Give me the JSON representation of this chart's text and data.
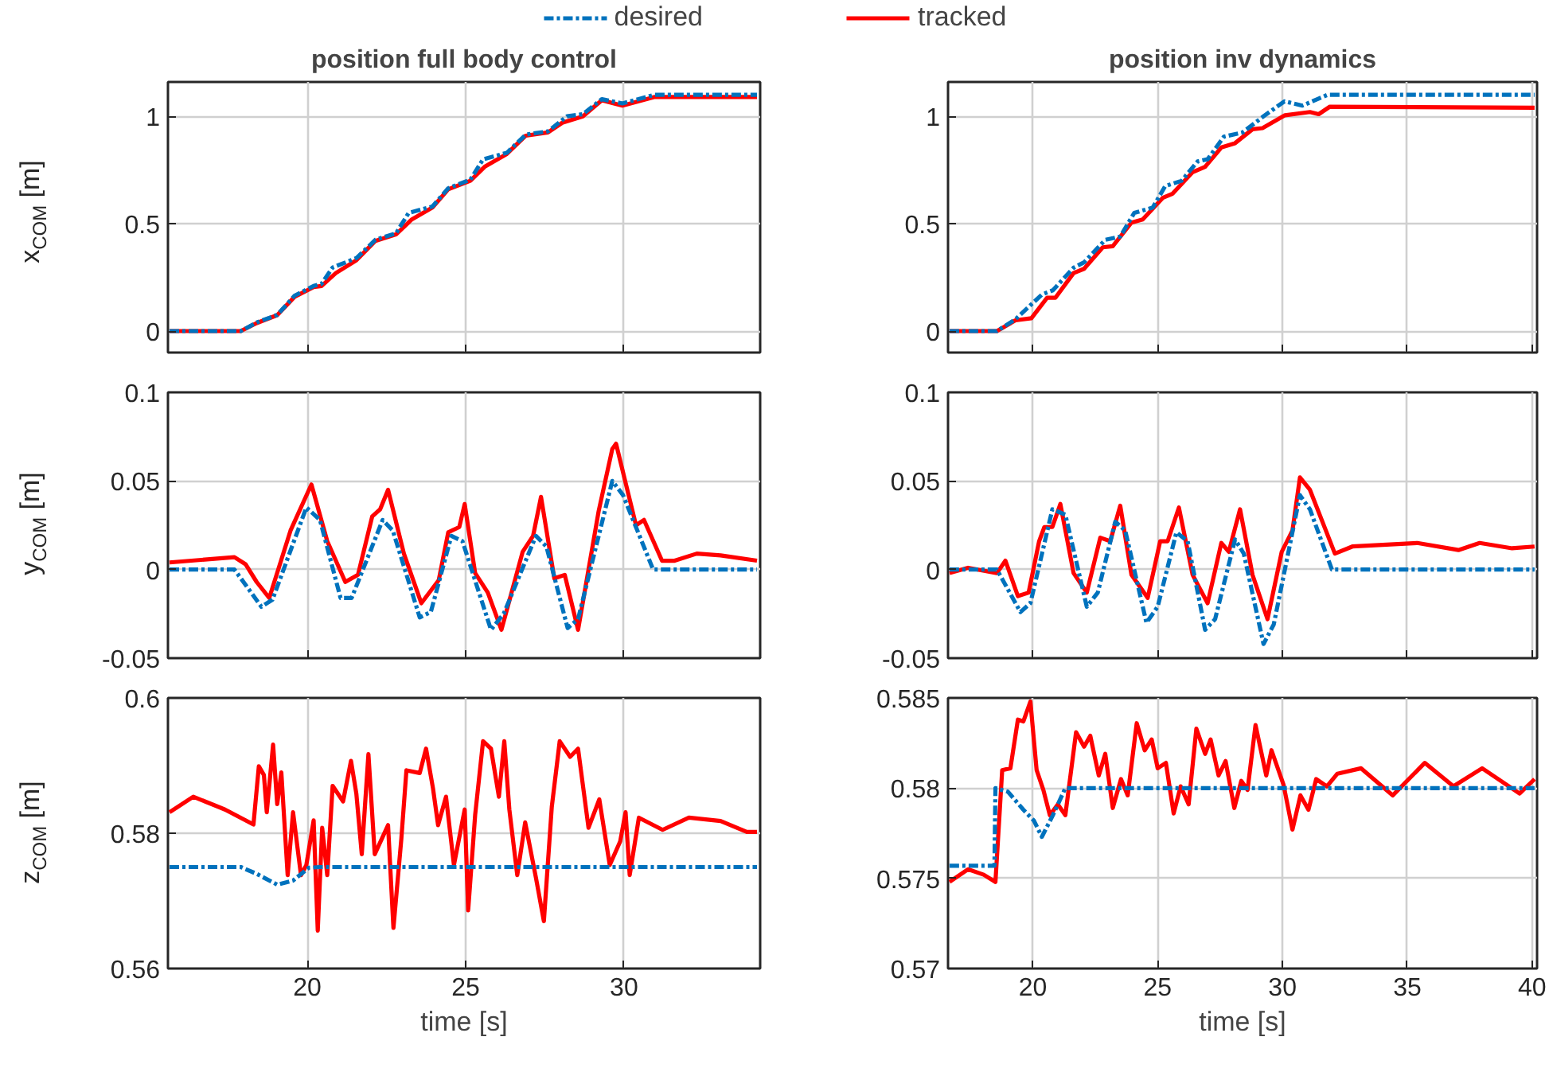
{
  "chart_data": [
    {
      "type": "line",
      "title": "position full body control",
      "ylabel": "x$_{COM}$ [m]",
      "xlim": [
        15.6,
        34.3
      ],
      "xticks": [
        20,
        25,
        30
      ],
      "ylim": [
        -0.1,
        1.16
      ],
      "yticks": [
        0,
        0.5,
        1
      ],
      "grid": true,
      "tick_labels": "y",
      "legend": "top",
      "line_style": "solid",
      "series": [
        {
          "name": "desired",
          "color": "#0072bd",
          "line_style": "dashdot",
          "x": [
            15.65,
            17.9,
            18.4,
            19.05,
            19.6,
            20.2,
            20.45,
            20.8,
            21.55,
            22.15,
            22.8,
            23.2,
            23.95,
            24.45,
            25.15,
            25.55,
            26.3,
            26.9,
            27.6,
            28.2,
            28.7,
            29.3,
            29.95,
            30.95,
            34.2
          ],
          "values": [
            0,
            0,
            0.04,
            0.075,
            0.165,
            0.21,
            0.22,
            0.296,
            0.34,
            0.425,
            0.455,
            0.55,
            0.58,
            0.665,
            0.705,
            0.8,
            0.83,
            0.915,
            0.93,
            1.0,
            1.01,
            1.08,
            1.06,
            1.1,
            1.1
          ]
        },
        {
          "name": "tracked",
          "color": "#ff0000",
          "x": [
            15.65,
            17.9,
            18.4,
            19.05,
            19.6,
            20.2,
            20.45,
            20.9,
            21.55,
            22.15,
            22.8,
            23.3,
            23.95,
            24.45,
            25.15,
            25.6,
            26.3,
            26.9,
            27.6,
            28.05,
            28.7,
            29.3,
            29.95,
            30.95,
            34.2
          ],
          "values": [
            0,
            0,
            0.037,
            0.074,
            0.16,
            0.205,
            0.21,
            0.27,
            0.33,
            0.42,
            0.45,
            0.52,
            0.575,
            0.66,
            0.7,
            0.765,
            0.825,
            0.91,
            0.925,
            0.97,
            1.0,
            1.075,
            1.05,
            1.09,
            1.09
          ]
        }
      ]
    },
    {
      "type": "line",
      "title": "position inv dynamics",
      "xlim": [
        16.6,
        40.2
      ],
      "xticks": [
        20,
        25,
        30,
        35,
        40
      ],
      "ylim": [
        -0.1,
        1.16
      ],
      "yticks": [
        0,
        0.5,
        1
      ],
      "grid": true,
      "tick_labels": "y",
      "series": [
        {
          "color": "#0072bd",
          "line_style": "dashdot",
          "x": [
            16.66,
            18.56,
            19.3,
            20.36,
            20.8,
            21.63,
            22.05,
            22.9,
            23.5,
            24.06,
            24.8,
            25.3,
            25.96,
            26.6,
            27.0,
            27.65,
            28.4,
            29.24,
            30.08,
            30.8,
            31.8,
            40.1
          ],
          "values": [
            0,
            0,
            0.055,
            0.17,
            0.19,
            0.295,
            0.32,
            0.425,
            0.44,
            0.55,
            0.575,
            0.675,
            0.7,
            0.79,
            0.8,
            0.905,
            0.925,
            1.0,
            1.07,
            1.05,
            1.1,
            1.1
          ]
        },
        {
          "color": "#ff0000",
          "x": [
            16.66,
            18.56,
            19.3,
            19.94,
            20.57,
            20.9,
            21.63,
            22.05,
            22.8,
            23.2,
            23.95,
            24.4,
            25.2,
            25.6,
            26.4,
            26.9,
            27.55,
            28.1,
            28.8,
            29.2,
            30.1,
            31.1,
            31.45,
            31.9,
            40.1
          ],
          "values": [
            0,
            0,
            0.05,
            0.06,
            0.155,
            0.155,
            0.27,
            0.29,
            0.39,
            0.395,
            0.505,
            0.52,
            0.62,
            0.64,
            0.74,
            0.765,
            0.855,
            0.875,
            0.94,
            0.945,
            1.005,
            1.02,
            1.01,
            1.045,
            1.04
          ]
        }
      ]
    },
    {
      "type": "line",
      "ylabel": "y$_{COM}$ [m]",
      "xlim": [
        15.6,
        34.3
      ],
      "xticks": [
        20,
        25,
        30
      ],
      "ylim": [
        -0.05,
        0.1
      ],
      "yticks": [
        -0.05,
        0,
        0.05,
        0.1
      ],
      "grid": true,
      "tick_labels": "y",
      "series": [
        {
          "color": "#0072bd",
          "line_style": "dashdot",
          "x": [
            15.65,
            17.7,
            18.55,
            18.9,
            19.97,
            20.4,
            21.05,
            21.4,
            22.38,
            22.7,
            23.55,
            23.9,
            24.55,
            24.9,
            25.8,
            26.2,
            27.22,
            27.55,
            28.22,
            28.55,
            29.63,
            29.97,
            30.92,
            34.2
          ],
          "values": [
            0,
            0,
            -0.021,
            -0.017,
            0.035,
            0.028,
            -0.016,
            -0.016,
            0.028,
            0.022,
            -0.027,
            -0.024,
            0.019,
            0.016,
            -0.034,
            -0.025,
            0.019,
            0.013,
            -0.033,
            -0.028,
            0.05,
            0.042,
            0,
            0
          ]
        },
        {
          "color": "#ff0000",
          "x": [
            15.65,
            17.7,
            18.05,
            18.4,
            18.8,
            19.47,
            20.13,
            20.63,
            21.2,
            21.6,
            22.05,
            22.3,
            22.55,
            23.05,
            23.6,
            24.15,
            24.45,
            24.8,
            24.97,
            25.3,
            25.7,
            26.13,
            26.8,
            27.13,
            27.38,
            27.8,
            28.13,
            28.55,
            29.2,
            29.63,
            29.75,
            30.05,
            30.38,
            30.63,
            31.2,
            31.6,
            32.3,
            33.05,
            34.2
          ],
          "values": [
            0.004,
            0.007,
            0.003,
            -0.007,
            -0.016,
            0.022,
            0.048,
            0.016,
            -0.007,
            -0.003,
            0.03,
            0.034,
            0.045,
            0.009,
            -0.019,
            -0.006,
            0.021,
            0.024,
            0.037,
            -0.002,
            -0.013,
            -0.034,
            0.01,
            0.019,
            0.041,
            -0.005,
            -0.003,
            -0.034,
            0.033,
            0.068,
            0.071,
            0.049,
            0.025,
            0.028,
            0.005,
            0.005,
            0.009,
            0.008,
            0.005
          ]
        }
      ]
    },
    {
      "type": "line",
      "xlim": [
        16.6,
        40.2
      ],
      "xticks": [
        20,
        25,
        30,
        35,
        40
      ],
      "ylim": [
        -0.05,
        0.1
      ],
      "yticks": [
        -0.05,
        0,
        0.05,
        0.1
      ],
      "grid": true,
      "tick_labels": "y",
      "series": [
        {
          "color": "#0072bd",
          "line_style": "dashdot",
          "x": [
            16.66,
            18.56,
            19.5,
            19.9,
            20.78,
            21.3,
            22.16,
            22.6,
            23.3,
            23.7,
            24.55,
            25.0,
            25.75,
            26.2,
            26.9,
            27.3,
            28.1,
            28.45,
            29.24,
            29.65,
            30.7,
            31.1,
            31.98,
            40.1
          ],
          "values": [
            0,
            0,
            -0.024,
            -0.019,
            0.034,
            0.031,
            -0.021,
            -0.013,
            0.027,
            0.022,
            -0.03,
            -0.021,
            0.021,
            0.016,
            -0.034,
            -0.028,
            0.017,
            0.009,
            -0.042,
            -0.031,
            0.042,
            0.034,
            0,
            0
          ]
        },
        {
          "color": "#ff0000",
          "x": [
            16.66,
            17.4,
            18.56,
            18.9,
            19.4,
            19.83,
            20.25,
            20.46,
            20.78,
            21.1,
            21.63,
            22.16,
            22.7,
            23.1,
            23.5,
            23.95,
            24.6,
            25.1,
            25.4,
            25.85,
            26.4,
            27.0,
            27.55,
            27.85,
            28.3,
            28.8,
            29.4,
            29.97,
            30.4,
            30.7,
            31.1,
            32.1,
            32.8,
            35.4,
            37.05,
            37.9,
            39.2,
            40.1
          ],
          "values": [
            -0.002,
            0.001,
            -0.002,
            0.005,
            -0.015,
            -0.013,
            0.016,
            0.024,
            0.024,
            0.037,
            -0.002,
            -0.013,
            0.018,
            0.016,
            0.036,
            -0.003,
            -0.016,
            0.016,
            0.016,
            0.035,
            -0.003,
            -0.019,
            0.015,
            0.01,
            0.034,
            -0.003,
            -0.028,
            0.01,
            0.022,
            0.052,
            0.045,
            0.009,
            0.013,
            0.015,
            0.011,
            0.015,
            0.012,
            0.013
          ]
        }
      ]
    },
    {
      "type": "line",
      "xlabel": "time [s]",
      "ylabel": "z$_{COM}$ [m]",
      "xlim": [
        15.6,
        34.3
      ],
      "xticks": [
        20,
        25,
        30
      ],
      "ylim": [
        0.56,
        0.6
      ],
      "yticks": [
        0.56,
        0.58,
        0.6
      ],
      "grid": true,
      "series": [
        {
          "color": "#0072bd",
          "line_style": "dashdot",
          "x": [
            15.65,
            17.9,
            18.4,
            19.05,
            19.55,
            20.05,
            20.4,
            34.2
          ],
          "values": [
            0.575,
            0.575,
            0.574,
            0.5724,
            0.573,
            0.5749,
            0.575,
            0.575
          ]
        },
        {
          "color": "#ff0000",
          "x": [
            15.65,
            16.4,
            17.4,
            18.3,
            18.47,
            18.63,
            18.72,
            18.92,
            19.05,
            19.18,
            19.38,
            19.55,
            19.8,
            19.97,
            20.2,
            20.33,
            20.47,
            20.63,
            20.8,
            21.13,
            21.38,
            21.55,
            21.72,
            21.93,
            22.13,
            22.55,
            22.72,
            22.97,
            23.13,
            23.55,
            23.75,
            23.97,
            24.13,
            24.38,
            24.63,
            24.97,
            25.08,
            25.3,
            25.55,
            25.8,
            26.05,
            26.22,
            26.38,
            26.63,
            26.88,
            27.22,
            27.47,
            27.72,
            27.97,
            28.3,
            28.55,
            28.88,
            29.22,
            29.55,
            29.88,
            30.05,
            30.18,
            30.47,
            31.22,
            32.05,
            33.05,
            33.88,
            34.2
          ],
          "values": [
            0.5831,
            0.5854,
            0.5835,
            0.5813,
            0.5899,
            0.5886,
            0.5831,
            0.5931,
            0.5843,
            0.589,
            0.5738,
            0.5831,
            0.5738,
            0.5753,
            0.5819,
            0.5656,
            0.5808,
            0.5738,
            0.587,
            0.5847,
            0.5907,
            0.5858,
            0.5769,
            0.5917,
            0.5769,
            0.5812,
            0.566,
            0.5792,
            0.5893,
            0.5889,
            0.5925,
            0.5866,
            0.5812,
            0.5854,
            0.5753,
            0.5835,
            0.5686,
            0.5827,
            0.5936,
            0.5925,
            0.5854,
            0.5936,
            0.5835,
            0.5738,
            0.5816,
            0.5734,
            0.567,
            0.5839,
            0.5936,
            0.5913,
            0.5925,
            0.5808,
            0.585,
            0.5753,
            0.5788,
            0.5831,
            0.5738,
            0.5823,
            0.5805,
            0.5823,
            0.5818,
            0.5802,
            0.5802
          ]
        }
      ]
    },
    {
      "type": "line",
      "xlabel": "time [s]",
      "xlim": [
        16.6,
        40.2
      ],
      "xticks": [
        20,
        25,
        30,
        35,
        40
      ],
      "ylim": [
        0.57,
        0.585
      ],
      "yticks": [
        0.57,
        0.575,
        0.58,
        0.585
      ],
      "grid": true,
      "series": [
        {
          "color": "#0072bd",
          "line_style": "dashdot",
          "x": [
            16.66,
            18.46,
            18.5,
            19.0,
            19.62,
            20.04,
            20.36,
            20.8,
            21.3,
            40.1
          ],
          "values": [
            0.5757,
            0.5757,
            0.58,
            0.5798,
            0.5788,
            0.5782,
            0.5773,
            0.5785,
            0.58,
            0.58
          ]
        },
        {
          "color": "#ff0000",
          "x": [
            16.66,
            17.4,
            18.03,
            18.5,
            18.77,
            19.1,
            19.4,
            19.62,
            19.9,
            20.15,
            20.42,
            20.68,
            21.0,
            21.3,
            21.73,
            22.05,
            22.3,
            22.64,
            22.9,
            23.2,
            23.53,
            23.8,
            24.16,
            24.48,
            24.76,
            25.0,
            25.33,
            25.64,
            25.92,
            26.24,
            26.55,
            26.9,
            27.12,
            27.44,
            27.72,
            28.07,
            28.35,
            28.6,
            28.92,
            29.35,
            29.56,
            30.04,
            30.4,
            30.72,
            31.04,
            31.35,
            31.78,
            32.2,
            33.15,
            34.42,
            35.7,
            36.85,
            38.0,
            39.5,
            40.1
          ],
          "values": [
            0.5748,
            0.5755,
            0.5752,
            0.5748,
            0.581,
            0.5811,
            0.5838,
            0.5837,
            0.5848,
            0.581,
            0.5799,
            0.5785,
            0.5791,
            0.5785,
            0.5831,
            0.5823,
            0.5829,
            0.5807,
            0.5819,
            0.5789,
            0.5805,
            0.5796,
            0.5836,
            0.5821,
            0.5827,
            0.5811,
            0.5814,
            0.5786,
            0.5801,
            0.5791,
            0.5833,
            0.5819,
            0.5827,
            0.5807,
            0.5815,
            0.5789,
            0.5804,
            0.5799,
            0.5835,
            0.5807,
            0.5821,
            0.5802,
            0.5777,
            0.5796,
            0.5788,
            0.5805,
            0.5801,
            0.5808,
            0.5811,
            0.5796,
            0.5814,
            0.5801,
            0.5811,
            0.5797,
            0.5805
          ]
        }
      ]
    }
  ]
}
